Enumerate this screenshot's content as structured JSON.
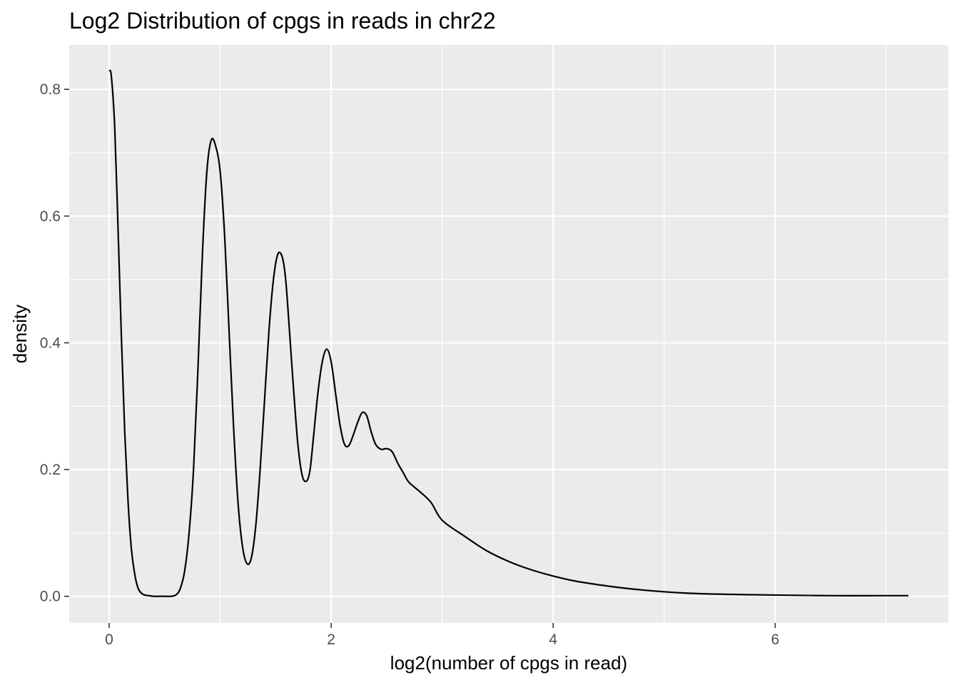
{
  "chart_data": {
    "type": "line",
    "title": "Log2 Distribution of cpgs in reads in chr22",
    "xlabel": "log2(number of cpgs in read)",
    "ylabel": "density",
    "xlim": [
      -0.36,
      7.56
    ],
    "ylim": [
      -0.042,
      0.87
    ],
    "x_ticks": [
      0,
      2,
      4,
      6
    ],
    "x_tick_labels": [
      "0",
      "2",
      "4",
      "6"
    ],
    "y_ticks": [
      0.0,
      0.2,
      0.4,
      0.6,
      0.8
    ],
    "y_tick_labels": [
      "0.0",
      "0.2",
      "0.4",
      "0.6",
      "0.8"
    ],
    "grid": true,
    "line_color": "#000000",
    "panel_color": "#ebebeb",
    "grid_color": "#ffffff",
    "series": [
      {
        "x": [
          0.0,
          0.02,
          0.05,
          0.08,
          0.11,
          0.14,
          0.17,
          0.2,
          0.23,
          0.26,
          0.29,
          0.32,
          0.36,
          0.4,
          0.45,
          0.5,
          0.55,
          0.6,
          0.64,
          0.68,
          0.72,
          0.76,
          0.8,
          0.84,
          0.88,
          0.92,
          0.96,
          1.0,
          1.04,
          1.08,
          1.12,
          1.16,
          1.2,
          1.24,
          1.28,
          1.32,
          1.36,
          1.4,
          1.44,
          1.48,
          1.52,
          1.56,
          1.59,
          1.62,
          1.66,
          1.7,
          1.74,
          1.78,
          1.81,
          1.84,
          1.88,
          1.92,
          1.96,
          2.0,
          2.04,
          2.08,
          2.12,
          2.16,
          2.2,
          2.24,
          2.28,
          2.32,
          2.36,
          2.4,
          2.45,
          2.5,
          2.55,
          2.6,
          2.65,
          2.7,
          2.8,
          2.9,
          3.0,
          3.2,
          3.4,
          3.6,
          3.8,
          4.0,
          4.2,
          4.5,
          4.8,
          5.2,
          5.6,
          6.0,
          6.5,
          7.0,
          7.2
        ],
        "y": [
          0.83,
          0.82,
          0.74,
          0.58,
          0.41,
          0.26,
          0.15,
          0.075,
          0.035,
          0.013,
          0.005,
          0.002,
          0.001,
          0.0,
          0.0,
          0.0,
          0.0,
          0.002,
          0.012,
          0.04,
          0.1,
          0.2,
          0.36,
          0.54,
          0.67,
          0.72,
          0.71,
          0.67,
          0.57,
          0.42,
          0.27,
          0.15,
          0.08,
          0.052,
          0.06,
          0.11,
          0.2,
          0.31,
          0.42,
          0.5,
          0.54,
          0.535,
          0.5,
          0.43,
          0.33,
          0.24,
          0.19,
          0.182,
          0.2,
          0.25,
          0.32,
          0.37,
          0.39,
          0.37,
          0.32,
          0.27,
          0.24,
          0.238,
          0.255,
          0.275,
          0.29,
          0.285,
          0.26,
          0.24,
          0.232,
          0.233,
          0.228,
          0.21,
          0.195,
          0.18,
          0.165,
          0.148,
          0.12,
          0.095,
          0.072,
          0.055,
          0.042,
          0.032,
          0.024,
          0.016,
          0.01,
          0.005,
          0.003,
          0.002,
          0.001,
          0.001,
          0.001
        ]
      }
    ]
  }
}
